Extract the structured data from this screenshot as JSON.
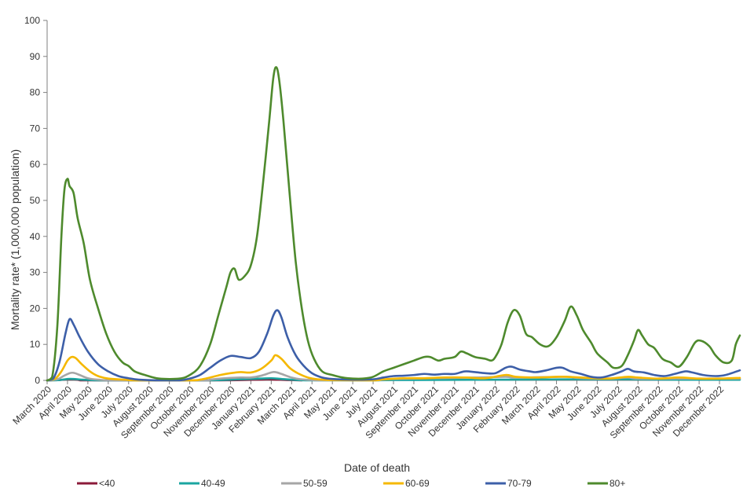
{
  "chart_data": {
    "type": "line",
    "xlabel": "Date of death",
    "ylabel": "Mortality rate* (1,000,000 population)",
    "ylim": [
      0,
      100
    ],
    "yticks": [
      0,
      10,
      20,
      30,
      40,
      50,
      60,
      70,
      80,
      90,
      100
    ],
    "xlim": [
      0,
      34
    ],
    "month_labels": [
      "March 2020",
      "April 2020",
      "May 2020",
      "June 2020",
      "July 2020",
      "August 2020",
      "September 2020",
      "October 2020",
      "November 2020",
      "December 2020",
      "January 2021",
      "February 2021",
      "March 2021",
      "April 2021",
      "May 2021",
      "June 2021",
      "July 2021",
      "August 2021",
      "September 2021",
      "October 2021",
      "November 2021",
      "December 2021",
      "January 2022",
      "February 2022",
      "March 2022",
      "April 2022",
      "May 2022",
      "June 2022",
      "July 2022",
      "August 2022",
      "September 2022",
      "October 2022",
      "November 2022",
      "December 2022"
    ],
    "grid": false,
    "legend_position": "bottom",
    "series": [
      {
        "name": "<40",
        "color": "#8b1a3a",
        "points": [
          [
            0,
            0
          ],
          [
            0.6,
            0.1
          ],
          [
            1.0,
            0.3
          ],
          [
            1.3,
            0.3
          ],
          [
            1.6,
            0.1
          ],
          [
            2.2,
            0
          ],
          [
            7.5,
            0
          ],
          [
            9.0,
            0.05
          ],
          [
            10.3,
            0.2
          ],
          [
            10.8,
            0.3
          ],
          [
            11.3,
            0.2
          ],
          [
            11.8,
            0.1
          ],
          [
            12.5,
            0
          ]
        ]
      },
      {
        "name": "40-49",
        "color": "#1aa5a0",
        "points": [
          [
            0,
            0
          ],
          [
            0.6,
            0.1
          ],
          [
            1.0,
            0.4
          ],
          [
            1.3,
            0.4
          ],
          [
            1.7,
            0.2
          ],
          [
            2.3,
            0.05
          ],
          [
            3.0,
            0
          ],
          [
            7.5,
            0
          ],
          [
            8.5,
            0.1
          ],
          [
            9.5,
            0.3
          ],
          [
            10.5,
            0.5
          ],
          [
            11.0,
            0.6
          ],
          [
            11.5,
            0.4
          ],
          [
            12.3,
            0.1
          ],
          [
            13.0,
            0
          ],
          [
            16.0,
            0
          ],
          [
            17.0,
            0.1
          ],
          [
            22.5,
            0.2
          ],
          [
            25.5,
            0.3
          ],
          [
            28.5,
            0.3
          ],
          [
            31.0,
            0.2
          ],
          [
            34.0,
            0.2
          ]
        ]
      },
      {
        "name": "50-59",
        "color": "#a6a6a6",
        "points": [
          [
            0,
            0
          ],
          [
            0.5,
            0.3
          ],
          [
            0.8,
            1.2
          ],
          [
            1.1,
            2.0
          ],
          [
            1.3,
            2.1
          ],
          [
            1.6,
            1.5
          ],
          [
            2.0,
            0.6
          ],
          [
            2.5,
            0.2
          ],
          [
            3.5,
            0
          ],
          [
            7.5,
            0
          ],
          [
            8.0,
            0.2
          ],
          [
            8.5,
            0.5
          ],
          [
            9.5,
            0.8
          ],
          [
            10.0,
            0.8
          ],
          [
            10.5,
            1.3
          ],
          [
            11.0,
            2.2
          ],
          [
            11.2,
            2.3
          ],
          [
            11.5,
            1.8
          ],
          [
            12.0,
            0.8
          ],
          [
            12.5,
            0.3
          ],
          [
            13.5,
            0
          ],
          [
            16.0,
            0
          ],
          [
            16.5,
            0.2
          ],
          [
            17.0,
            0.4
          ],
          [
            19.0,
            0.6
          ],
          [
            21.0,
            0.8
          ],
          [
            22.5,
            1.0
          ],
          [
            23.0,
            0.8
          ],
          [
            25.5,
            1.0
          ],
          [
            26.0,
            0.7
          ],
          [
            27.5,
            0.5
          ],
          [
            28.5,
            0.8
          ],
          [
            29.0,
            0.5
          ],
          [
            31.0,
            0.5
          ],
          [
            34.0,
            0.5
          ]
        ]
      },
      {
        "name": "60-69",
        "color": "#f5b800",
        "points": [
          [
            0,
            0
          ],
          [
            0.4,
            0.5
          ],
          [
            0.7,
            2.5
          ],
          [
            1.0,
            5.5
          ],
          [
            1.2,
            6.5
          ],
          [
            1.4,
            6.2
          ],
          [
            1.7,
            4.5
          ],
          [
            2.1,
            2.5
          ],
          [
            2.5,
            1.2
          ],
          [
            3.0,
            0.5
          ],
          [
            3.8,
            0.2
          ],
          [
            4.5,
            0
          ],
          [
            7.0,
            0
          ],
          [
            7.5,
            0.2
          ],
          [
            8.0,
            0.8
          ],
          [
            8.5,
            1.5
          ],
          [
            9.0,
            2.0
          ],
          [
            9.5,
            2.3
          ],
          [
            10.0,
            2.2
          ],
          [
            10.5,
            3.2
          ],
          [
            11.0,
            5.5
          ],
          [
            11.2,
            7.0
          ],
          [
            11.5,
            6.0
          ],
          [
            11.9,
            3.5
          ],
          [
            12.3,
            2.0
          ],
          [
            12.8,
            0.8
          ],
          [
            13.3,
            0.3
          ],
          [
            14.0,
            0.1
          ],
          [
            16.0,
            0
          ],
          [
            16.5,
            0.3
          ],
          [
            17.5,
            0.6
          ],
          [
            18.5,
            0.6
          ],
          [
            19.5,
            0.8
          ],
          [
            20.5,
            0.8
          ],
          [
            21.5,
            0.6
          ],
          [
            22.5,
            1.5
          ],
          [
            23.0,
            1.0
          ],
          [
            24.0,
            0.8
          ],
          [
            25.0,
            1.0
          ],
          [
            25.5,
            1.0
          ],
          [
            26.5,
            0.7
          ],
          [
            27.5,
            0.5
          ],
          [
            28.5,
            1.0
          ],
          [
            29.0,
            0.8
          ],
          [
            30.0,
            0.5
          ],
          [
            31.0,
            0.8
          ],
          [
            32.0,
            0.5
          ],
          [
            33.0,
            0.5
          ],
          [
            34.0,
            0.7
          ]
        ]
      },
      {
        "name": "70-79",
        "color": "#3d5fa8",
        "points": [
          [
            0,
            0
          ],
          [
            0.3,
            0.5
          ],
          [
            0.6,
            5.0
          ],
          [
            0.9,
            13.0
          ],
          [
            1.1,
            17.0
          ],
          [
            1.3,
            15.5
          ],
          [
            1.6,
            12.0
          ],
          [
            2.0,
            8.0
          ],
          [
            2.5,
            4.5
          ],
          [
            3.0,
            2.5
          ],
          [
            3.5,
            1.2
          ],
          [
            4.0,
            0.6
          ],
          [
            4.5,
            0.2
          ],
          [
            5.5,
            0
          ],
          [
            6.5,
            0
          ],
          [
            7.0,
            0.5
          ],
          [
            7.5,
            1.5
          ],
          [
            8.0,
            3.5
          ],
          [
            8.5,
            5.5
          ],
          [
            9.0,
            6.8
          ],
          [
            9.5,
            6.5
          ],
          [
            10.0,
            6.2
          ],
          [
            10.4,
            8.0
          ],
          [
            10.8,
            13.0
          ],
          [
            11.1,
            18.0
          ],
          [
            11.3,
            19.5
          ],
          [
            11.5,
            17.5
          ],
          [
            11.8,
            12.0
          ],
          [
            12.2,
            7.0
          ],
          [
            12.6,
            4.0
          ],
          [
            13.0,
            2.0
          ],
          [
            13.5,
            0.8
          ],
          [
            14.0,
            0.4
          ],
          [
            15.0,
            0.2
          ],
          [
            16.0,
            0.3
          ],
          [
            16.5,
            0.8
          ],
          [
            17.0,
            1.2
          ],
          [
            17.5,
            1.3
          ],
          [
            18.0,
            1.5
          ],
          [
            18.5,
            1.8
          ],
          [
            19.0,
            1.6
          ],
          [
            19.5,
            1.8
          ],
          [
            20.0,
            1.8
          ],
          [
            20.5,
            2.5
          ],
          [
            21.0,
            2.3
          ],
          [
            21.5,
            2.0
          ],
          [
            22.0,
            2.0
          ],
          [
            22.5,
            3.5
          ],
          [
            22.8,
            3.8
          ],
          [
            23.2,
            3.0
          ],
          [
            23.7,
            2.5
          ],
          [
            24.0,
            2.3
          ],
          [
            24.5,
            2.8
          ],
          [
            25.0,
            3.5
          ],
          [
            25.3,
            3.5
          ],
          [
            25.7,
            2.5
          ],
          [
            26.2,
            1.8
          ],
          [
            26.7,
            1.0
          ],
          [
            27.2,
            0.8
          ],
          [
            27.7,
            1.5
          ],
          [
            28.2,
            2.5
          ],
          [
            28.5,
            3.2
          ],
          [
            28.8,
            2.5
          ],
          [
            29.3,
            2.2
          ],
          [
            29.8,
            1.5
          ],
          [
            30.3,
            1.2
          ],
          [
            30.8,
            1.8
          ],
          [
            31.3,
            2.5
          ],
          [
            31.6,
            2.3
          ],
          [
            32.2,
            1.5
          ],
          [
            32.8,
            1.2
          ],
          [
            33.3,
            1.5
          ],
          [
            34.0,
            2.8
          ]
        ]
      },
      {
        "name": "80+",
        "color": "#4e8a2d",
        "points": [
          [
            0,
            0
          ],
          [
            0.25,
            1.0
          ],
          [
            0.5,
            15.0
          ],
          [
            0.7,
            40.0
          ],
          [
            0.85,
            53.0
          ],
          [
            1.0,
            56.0
          ],
          [
            1.1,
            54.0
          ],
          [
            1.3,
            52.0
          ],
          [
            1.5,
            45.0
          ],
          [
            1.8,
            38.0
          ],
          [
            2.1,
            28.0
          ],
          [
            2.5,
            20.0
          ],
          [
            2.9,
            13.0
          ],
          [
            3.3,
            8.0
          ],
          [
            3.7,
            5.0
          ],
          [
            4.0,
            4.0
          ],
          [
            4.3,
            2.5
          ],
          [
            4.8,
            1.5
          ],
          [
            5.5,
            0.5
          ],
          [
            6.5,
            0.5
          ],
          [
            7.0,
            1.5
          ],
          [
            7.5,
            4.0
          ],
          [
            8.0,
            10.0
          ],
          [
            8.4,
            18.0
          ],
          [
            8.8,
            26.0
          ],
          [
            9.0,
            30.0
          ],
          [
            9.2,
            31.0
          ],
          [
            9.4,
            28.0
          ],
          [
            9.7,
            29.0
          ],
          [
            10.0,
            32.0
          ],
          [
            10.3,
            40.0
          ],
          [
            10.6,
            55.0
          ],
          [
            10.9,
            72.0
          ],
          [
            11.1,
            84.0
          ],
          [
            11.25,
            87.0
          ],
          [
            11.4,
            83.0
          ],
          [
            11.6,
            72.0
          ],
          [
            11.9,
            52.0
          ],
          [
            12.2,
            33.0
          ],
          [
            12.5,
            20.0
          ],
          [
            12.8,
            11.0
          ],
          [
            13.1,
            6.0
          ],
          [
            13.5,
            2.5
          ],
          [
            14.0,
            1.5
          ],
          [
            14.5,
            0.8
          ],
          [
            15.0,
            0.5
          ],
          [
            15.5,
            0.5
          ],
          [
            16.0,
            1.0
          ],
          [
            16.5,
            2.5
          ],
          [
            17.0,
            3.5
          ],
          [
            17.5,
            4.5
          ],
          [
            18.0,
            5.5
          ],
          [
            18.5,
            6.5
          ],
          [
            18.8,
            6.5
          ],
          [
            19.2,
            5.5
          ],
          [
            19.5,
            6.0
          ],
          [
            20.0,
            6.5
          ],
          [
            20.3,
            8.0
          ],
          [
            20.6,
            7.5
          ],
          [
            21.0,
            6.5
          ],
          [
            21.5,
            6.0
          ],
          [
            21.8,
            5.5
          ],
          [
            22.0,
            6.5
          ],
          [
            22.3,
            10.0
          ],
          [
            22.6,
            16.0
          ],
          [
            22.9,
            19.5
          ],
          [
            23.2,
            18.0
          ],
          [
            23.5,
            13.0
          ],
          [
            23.8,
            12.0
          ],
          [
            24.2,
            10.0
          ],
          [
            24.6,
            9.5
          ],
          [
            25.0,
            12.0
          ],
          [
            25.4,
            16.5
          ],
          [
            25.7,
            20.5
          ],
          [
            26.0,
            18.0
          ],
          [
            26.3,
            14.0
          ],
          [
            26.7,
            10.5
          ],
          [
            27.0,
            7.5
          ],
          [
            27.5,
            5.0
          ],
          [
            27.8,
            3.5
          ],
          [
            28.2,
            4.0
          ],
          [
            28.5,
            7.0
          ],
          [
            28.8,
            11.0
          ],
          [
            29.0,
            14.0
          ],
          [
            29.2,
            12.5
          ],
          [
            29.5,
            10.0
          ],
          [
            29.8,
            9.0
          ],
          [
            30.2,
            6.0
          ],
          [
            30.6,
            5.0
          ],
          [
            31.0,
            3.8
          ],
          [
            31.4,
            6.5
          ],
          [
            31.8,
            10.5
          ],
          [
            32.1,
            11.0
          ],
          [
            32.5,
            9.5
          ],
          [
            32.8,
            7.0
          ],
          [
            33.2,
            5.0
          ],
          [
            33.6,
            5.5
          ],
          [
            33.8,
            10.0
          ],
          [
            34.0,
            12.5
          ]
        ]
      }
    ]
  }
}
